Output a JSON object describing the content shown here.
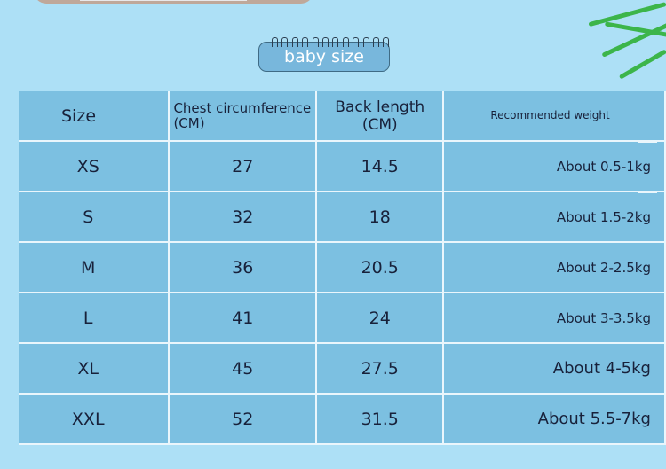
{
  "badge": {
    "label": "baby size"
  },
  "table": {
    "headers": [
      "Size",
      "Chest circumference (CM)",
      "Back length (CM)",
      "Recommended weight"
    ],
    "rows": [
      [
        "XS",
        "27",
        "14.5",
        "About 0.5-1kg"
      ],
      [
        "S",
        "32",
        "18",
        "About 1.5-2kg"
      ],
      [
        "M",
        "36",
        "20.5",
        "About 2-2.5kg"
      ],
      [
        "L",
        "41",
        "24",
        "About 3-3.5kg"
      ],
      [
        "XL",
        "45",
        "27.5",
        "About 4-5kg"
      ],
      [
        "XXL",
        "52",
        "31.5",
        "About 5.5-7kg"
      ]
    ]
  },
  "colors": {
    "background": "#ade0f6",
    "cell": "#7cc0e1",
    "text": "#18213a"
  }
}
